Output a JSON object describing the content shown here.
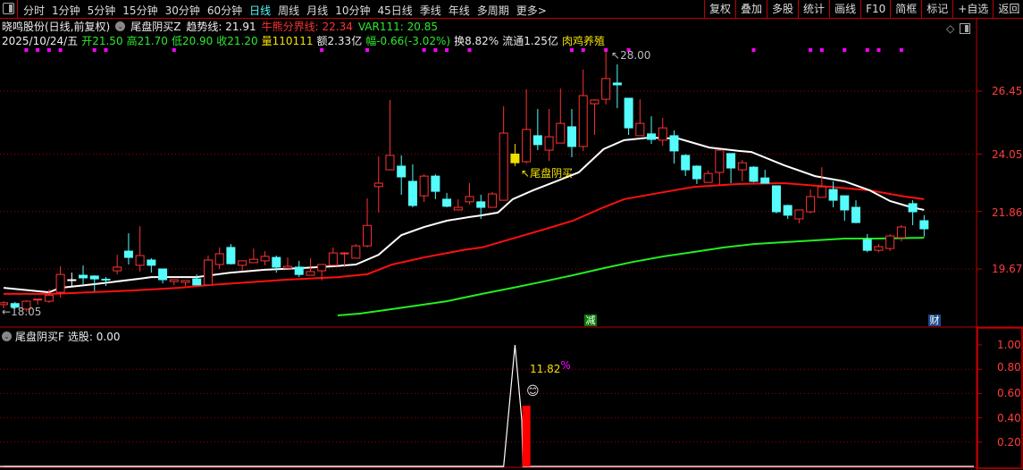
{
  "toolbar": {
    "periods": [
      "分时",
      "1分钟",
      "5分钟",
      "15分钟",
      "30分钟",
      "60分钟",
      "日线",
      "周线",
      "月线",
      "10分钟",
      "45日线",
      "季线",
      "年线",
      "多周期",
      "更多>"
    ],
    "active_period": "日线",
    "buttons": [
      "复权",
      "叠加",
      "多股",
      "统计",
      "画线",
      "F10",
      "简框",
      "标记",
      "+自选",
      "返回"
    ]
  },
  "header": {
    "stock": "晓鸣股份(日线,前复权)",
    "indicator": "尾盘阴买Z",
    "trend": "趋势线: 21.91",
    "bullbear": "牛熊分界线: 22.34",
    "var111": "VAR111: 20.85",
    "date": "2025/10/24/五",
    "open": "开21.50",
    "high": "高21.70",
    "low": "低20.90",
    "close": "收21.20",
    "volume": "量110111",
    "amount": "额2.33亿",
    "change": "幅-0.66(-3.02%)",
    "turnover": "换8.82%",
    "float": "流通1.25亿",
    "sector": "肉鸡养殖"
  },
  "colors": {
    "up": "#ff3232",
    "down": "#54fcfc",
    "signal": "#f0e000",
    "trend": "#ffffff",
    "bullbear": "#ff1010",
    "var111": "#22ee22",
    "dot": "#ff00ff",
    "grid": "#a00000"
  },
  "price_axis": [
    "26.45",
    "24.05",
    "21.86",
    "19.67"
  ],
  "annotations": {
    "high_label": "28.00",
    "low_label": "18.05",
    "signal_label": "尾盘阴买",
    "badge_reduce": "减",
    "badge_finance": "财"
  },
  "chart": {
    "candles": [
      [
        18.31,
        18.44,
        18.17,
        18.38
      ],
      [
        18.35,
        18.41,
        18.14,
        18.21
      ],
      [
        18.14,
        18.48,
        18.05,
        18.44
      ],
      [
        18.5,
        18.52,
        18.31,
        18.52
      ],
      [
        18.44,
        18.89,
        18.38,
        18.67
      ],
      [
        18.78,
        19.77,
        18.58,
        19.46
      ],
      [
        19.26,
        19.53,
        19.02,
        19.26
      ],
      [
        19.43,
        19.8,
        19.09,
        19.33
      ],
      [
        19.4,
        19.43,
        18.82,
        19.29
      ],
      [
        19.28,
        19.36,
        19.02,
        19.26
      ],
      [
        19.6,
        20.21,
        19.46,
        19.74
      ],
      [
        20.35,
        21.03,
        19.84,
        20.11
      ],
      [
        19.81,
        21.3,
        19.57,
        20.18
      ],
      [
        20.01,
        20.08,
        19.53,
        19.81
      ],
      [
        19.67,
        19.67,
        19.12,
        19.26
      ],
      [
        19.19,
        19.26,
        19.05,
        19.26
      ],
      [
        19.16,
        19.23,
        19.02,
        19.23
      ],
      [
        19.29,
        19.46,
        19.06,
        19.06
      ],
      [
        19.06,
        20.18,
        19.02,
        20.01
      ],
      [
        19.84,
        20.49,
        19.67,
        20.25
      ],
      [
        20.49,
        20.62,
        19.84,
        19.87
      ],
      [
        19.81,
        19.98,
        19.6,
        19.98
      ],
      [
        19.91,
        20.45,
        19.91,
        20.04
      ],
      [
        19.98,
        20.35,
        19.81,
        20.15
      ],
      [
        20.11,
        20.18,
        19.53,
        19.74
      ],
      [
        19.7,
        20.11,
        19.7,
        19.77
      ],
      [
        19.74,
        19.98,
        19.36,
        19.46
      ],
      [
        19.43,
        20.08,
        19.43,
        19.57
      ],
      [
        19.6,
        19.84,
        19.23,
        19.84
      ],
      [
        19.81,
        20.49,
        19.81,
        20.28
      ],
      [
        20.25,
        20.31,
        19.74,
        20.28
      ],
      [
        20.08,
        20.62,
        20.08,
        20.55
      ],
      [
        20.55,
        22.36,
        20.49,
        21.33
      ],
      [
        22.81,
        23.96,
        21.82,
        22.94
      ],
      [
        23.45,
        26.11,
        23.45,
        24.0
      ],
      [
        23.59,
        24.0,
        22.5,
        23.18
      ],
      [
        23.01,
        23.66,
        22.02,
        22.09
      ],
      [
        22.46,
        23.28,
        22.22,
        23.21
      ],
      [
        23.21,
        23.28,
        22.33,
        22.63
      ],
      [
        22.33,
        22.57,
        22.02,
        22.06
      ],
      [
        21.92,
        22.33,
        21.92,
        22.02
      ],
      [
        22.23,
        22.94,
        22.12,
        22.43
      ],
      [
        22.23,
        22.5,
        21.58,
        22.02
      ],
      [
        22.02,
        22.6,
        22.02,
        22.53
      ],
      [
        22.29,
        25.87,
        22.29,
        24.85
      ],
      [
        24.05,
        24.44,
        23.59,
        23.72
      ],
      [
        23.76,
        26.52,
        23.69,
        24.99
      ],
      [
        24.75,
        25.77,
        24.2,
        24.41
      ],
      [
        24.2,
        25.77,
        23.79,
        24.71
      ],
      [
        24.47,
        26.55,
        24.47,
        25.22
      ],
      [
        25.09,
        25.77,
        23.93,
        24.34
      ],
      [
        24.34,
        27.27,
        24.17,
        26.28
      ],
      [
        25.97,
        26.14,
        24.78,
        26.11
      ],
      [
        26.14,
        28.0,
        25.94,
        26.93
      ],
      [
        26.76,
        27.47,
        25.8,
        26.69
      ],
      [
        26.18,
        26.18,
        24.78,
        25.05
      ],
      [
        24.75,
        26.14,
        24.75,
        25.22
      ],
      [
        24.82,
        25.49,
        24.44,
        24.61
      ],
      [
        24.58,
        25.43,
        24.37,
        25.05
      ],
      [
        24.75,
        24.95,
        23.69,
        24.17
      ],
      [
        24.0,
        24.05,
        23.21,
        23.45
      ],
      [
        23.59,
        23.62,
        22.91,
        23.11
      ],
      [
        22.97,
        23.42,
        22.97,
        23.31
      ],
      [
        23.35,
        24.2,
        22.87,
        24.2
      ],
      [
        24.07,
        24.07,
        22.94,
        23.52
      ],
      [
        23.45,
        23.83,
        23.01,
        23.72
      ],
      [
        23.55,
        23.59,
        22.97,
        23.01
      ],
      [
        23.14,
        23.45,
        22.94,
        22.94
      ],
      [
        22.84,
        22.84,
        21.79,
        21.85
      ],
      [
        22.09,
        22.12,
        21.58,
        21.72
      ],
      [
        21.58,
        21.92,
        21.41,
        21.92
      ],
      [
        21.85,
        22.7,
        21.79,
        22.43
      ],
      [
        22.4,
        23.55,
        22.4,
        22.8
      ],
      [
        22.7,
        23.01,
        22.02,
        22.29
      ],
      [
        22.46,
        22.46,
        21.51,
        21.92
      ],
      [
        22.02,
        22.29,
        21.41,
        21.44
      ],
      [
        20.79,
        21.0,
        20.31,
        20.38
      ],
      [
        20.38,
        20.62,
        20.31,
        20.52
      ],
      [
        20.45,
        21.0,
        20.35,
        20.93
      ],
      [
        20.86,
        21.34,
        20.72,
        21.27
      ],
      [
        22.16,
        22.29,
        21.34,
        21.85
      ],
      [
        21.51,
        21.72,
        20.9,
        21.2
      ]
    ],
    "signal_candle_index": 45,
    "trend_line": [
      [
        0,
        18.95
      ],
      [
        4,
        18.78
      ],
      [
        5,
        18.95
      ],
      [
        8,
        19.09
      ],
      [
        12,
        19.3
      ],
      [
        13,
        19.36
      ],
      [
        17,
        19.36
      ],
      [
        20,
        19.53
      ],
      [
        23,
        19.64
      ],
      [
        26,
        19.7
      ],
      [
        29,
        19.77
      ],
      [
        31,
        19.84
      ],
      [
        33,
        20.21
      ],
      [
        35,
        20.96
      ],
      [
        37,
        21.27
      ],
      [
        39,
        21.51
      ],
      [
        41,
        21.65
      ],
      [
        42,
        21.71
      ],
      [
        43.5,
        21.82
      ],
      [
        44.8,
        22.33
      ],
      [
        46.6,
        22.67
      ],
      [
        48.8,
        23.04
      ],
      [
        50.6,
        23.35
      ],
      [
        52.8,
        24.24
      ],
      [
        54.6,
        24.58
      ],
      [
        56.8,
        24.68
      ],
      [
        59.4,
        24.64
      ],
      [
        62.1,
        24.3
      ],
      [
        64.7,
        24.17
      ],
      [
        65.8,
        24.13
      ],
      [
        68.7,
        23.62
      ],
      [
        71.4,
        23.21
      ],
      [
        74,
        23.01
      ],
      [
        76.2,
        22.67
      ],
      [
        78,
        22.26
      ],
      [
        79.9,
        22.02
      ],
      [
        81,
        21.92
      ]
    ],
    "bullbear_line": [
      [
        0,
        18.72
      ],
      [
        4.4,
        18.72
      ],
      [
        7.5,
        18.78
      ],
      [
        11.5,
        18.85
      ],
      [
        15.4,
        18.95
      ],
      [
        18.2,
        19.06
      ],
      [
        24.9,
        19.26
      ],
      [
        29.5,
        19.36
      ],
      [
        32,
        19.47
      ],
      [
        34.2,
        19.84
      ],
      [
        37,
        20.11
      ],
      [
        40.4,
        20.39
      ],
      [
        42.1,
        20.49
      ],
      [
        44.8,
        20.83
      ],
      [
        47.5,
        21.17
      ],
      [
        50.1,
        21.51
      ],
      [
        52.8,
        22.02
      ],
      [
        54.6,
        22.33
      ],
      [
        56.8,
        22.5
      ],
      [
        59.4,
        22.7
      ],
      [
        60.8,
        22.8
      ],
      [
        64.7,
        22.91
      ],
      [
        68.7,
        22.94
      ],
      [
        72.7,
        22.8
      ],
      [
        76.2,
        22.67
      ],
      [
        79.3,
        22.43
      ],
      [
        81,
        22.33
      ]
    ],
    "var111_line": [
      [
        29.4,
        17.9
      ],
      [
        31.4,
        17.97
      ],
      [
        34.7,
        18.17
      ],
      [
        39,
        18.44
      ],
      [
        42.1,
        18.72
      ],
      [
        44.8,
        18.95
      ],
      [
        47.5,
        19.19
      ],
      [
        50.1,
        19.43
      ],
      [
        52.8,
        19.7
      ],
      [
        55.4,
        19.94
      ],
      [
        58.1,
        20.15
      ],
      [
        60.8,
        20.32
      ],
      [
        63.4,
        20.49
      ],
      [
        66,
        20.62
      ],
      [
        68.7,
        20.69
      ],
      [
        71.4,
        20.76
      ],
      [
        74,
        20.83
      ],
      [
        76.7,
        20.83
      ],
      [
        81,
        20.86
      ]
    ],
    "dot_signals": [
      2,
      3,
      4,
      5,
      8,
      9,
      15,
      28,
      32,
      37,
      38,
      39,
      41,
      50,
      51,
      53,
      55,
      66,
      71,
      72,
      74,
      76,
      77,
      79
    ]
  },
  "sub": {
    "title": "尾盘阴买F",
    "value": "选股: 0.00",
    "axis": [
      "1.00",
      "0.80",
      "0.60",
      "0.40",
      "0.20"
    ],
    "pct_value": "11.82",
    "pct_sign": "%",
    "line": [
      [
        0,
        0
      ],
      [
        44,
        0
      ],
      [
        45,
        1.0
      ],
      [
        45.6,
        0.38
      ],
      [
        45.7,
        0
      ]
    ],
    "bar_index": 46,
    "bar_value": 0.5
  }
}
